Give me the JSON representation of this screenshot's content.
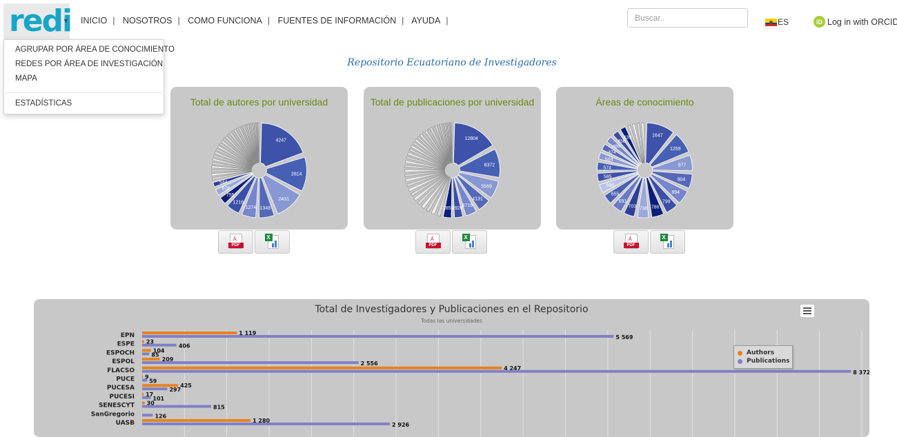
{
  "header": {
    "logo": "redi",
    "nav": [
      "INICIO",
      "NOSOTROS",
      "COMO FUNCIONA",
      "FUENTES DE INFORMACIÓN",
      "AYUDA"
    ],
    "search_placeholder": "Buscar..",
    "language": "ES",
    "orcid_label": "Log in with ORCID"
  },
  "dropdown": {
    "items": [
      "AGRUPAR POR ÁREA DE CONOCIMIENTO",
      "REDES POR ÁREA DE INVESTIGACIÓN",
      "MAPA",
      "ESTADÍSTICAS"
    ]
  },
  "page_title": "Repositorio Ecuatoriano de Investigadores",
  "export": {
    "pdf_label": "PDF"
  },
  "colors": {
    "title_green": "#6a8a10",
    "authors": "#e8821e",
    "publications": "#8080c8",
    "pie_dark": "#0b1f7a",
    "pie_light": "#b8c4e8"
  },
  "chart_data": [
    {
      "type": "pie",
      "title": "Total de autores por universidad",
      "labeled_values": [
        4247,
        2814,
        2431,
        1349,
        1274,
        1216,
        755,
        678,
        544
      ],
      "small_slice_count": 30
    },
    {
      "type": "pie",
      "title": "Total de publicaciones por universidad",
      "labeled_values": [
        12804,
        8372,
        5569,
        4131,
        3716,
        2926,
        2856
      ],
      "small_slice_count": 36
    },
    {
      "type": "pie",
      "title": "Áreas de conocimiento",
      "labeled_values": [
        1647,
        1259,
        977,
        904,
        894,
        799,
        786,
        738,
        703,
        691,
        655,
        596,
        585,
        574,
        504,
        474,
        468,
        456,
        439
      ],
      "small_slice_count": 4
    },
    {
      "type": "bar",
      "title": "Total de Investigadores y Publicaciones en el Repositorio",
      "subtitle": "Todas las universidades",
      "categories": [
        "EPN",
        "ESPE",
        "ESPOCH",
        "ESPOL",
        "FLACSO",
        "PUCE",
        "PUCESA",
        "PUCESI",
        "SENESCYT",
        "SanGregorio",
        "UASB"
      ],
      "series": [
        {
          "name": "Authors",
          "values": [
            1119,
            23,
            104,
            209,
            4247,
            9,
            425,
            17,
            30,
            null,
            1280
          ]
        },
        {
          "name": "Publications",
          "values": [
            5569,
            406,
            85,
            2556,
            8372,
            59,
            297,
            101,
            815,
            126,
            2926
          ]
        }
      ],
      "value_labels": {
        "authors": [
          "1 119",
          "23",
          "104",
          "209",
          "4 247",
          "9",
          "425",
          "17",
          "30",
          "",
          "1 280"
        ],
        "publications": [
          "5 569",
          "406",
          "85",
          "2 556",
          "8 372",
          "59",
          "297",
          "101",
          "815",
          "126",
          "2 926"
        ]
      },
      "legend": "right"
    }
  ]
}
